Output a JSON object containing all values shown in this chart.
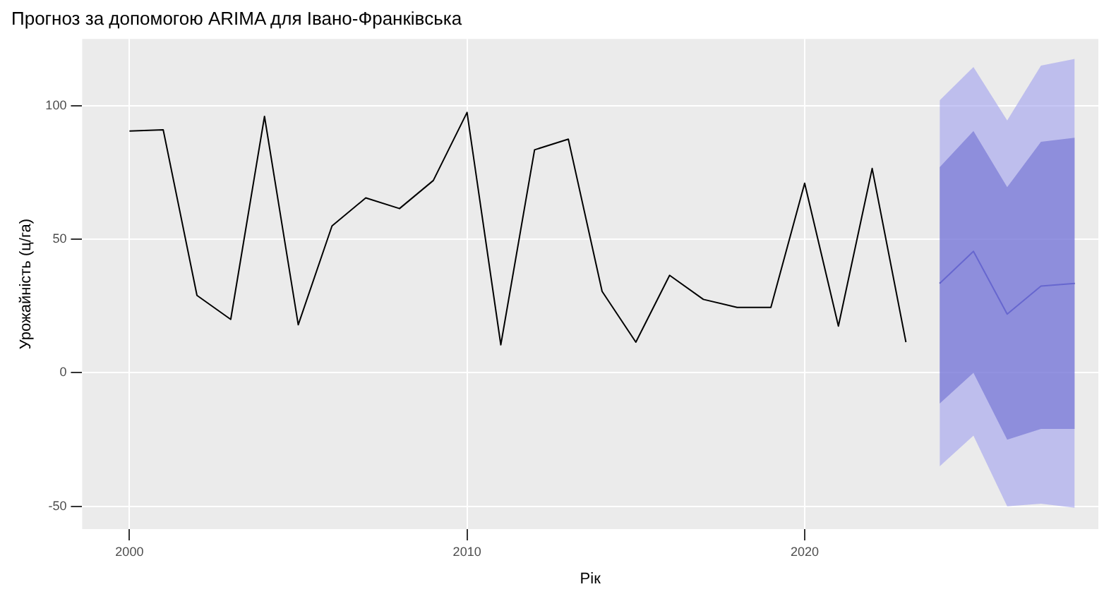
{
  "chart_data": {
    "type": "line",
    "title": "Прогноз за допомогою ARIMA для Івано-Франківська",
    "xlabel": "Рік",
    "ylabel": "Урожайність (ц/га)",
    "xlim": [
      1998.6,
      2028.7
    ],
    "xticks": [
      2000,
      2010,
      2020
    ],
    "ylim": [
      -58.5,
      125
    ],
    "yticks": [
      -50,
      0,
      50,
      100
    ],
    "grid": true,
    "legend": false,
    "marker": "none",
    "line_style": "solid",
    "series": [
      {
        "color": "#000000",
        "x": [
          2000,
          2001,
          2002,
          2003,
          2004,
          2005,
          2006,
          2007,
          2008,
          2009,
          2010,
          2011,
          2012,
          2013,
          2014,
          2015,
          2016,
          2017,
          2018,
          2019,
          2020,
          2021,
          2022,
          2023
        ],
        "values": [
          90.5,
          91,
          29,
          20,
          96,
          18,
          55,
          65.5,
          61.5,
          72,
          97.5,
          10.5,
          83.5,
          87.5,
          30.5,
          11.5,
          36.5,
          27.5,
          24.5,
          24.5,
          71,
          17.5,
          76.5,
          11.5
        ]
      },
      {
        "color": "#9999ee",
        "x": [
          2024,
          2025,
          2026,
          2027,
          2028
        ],
        "values": [
          null,
          null,
          null,
          null,
          null
        ],
        "lower": [
          -35,
          -23.5,
          -50,
          -49,
          -50.5
        ],
        "upper": [
          102,
          114.5,
          94.5,
          115,
          117.5
        ]
      },
      {
        "color": "#2a2aa8",
        "x": [
          2024,
          2025,
          2026,
          2027,
          2028
        ],
        "values": [
          33.5,
          45.5,
          22,
          32.5,
          33.5
        ],
        "lower": [
          -11.5,
          0,
          -25,
          -21,
          -21
        ],
        "upper": [
          77,
          90.5,
          69.5,
          86.5,
          88
        ]
      }
    ]
  }
}
